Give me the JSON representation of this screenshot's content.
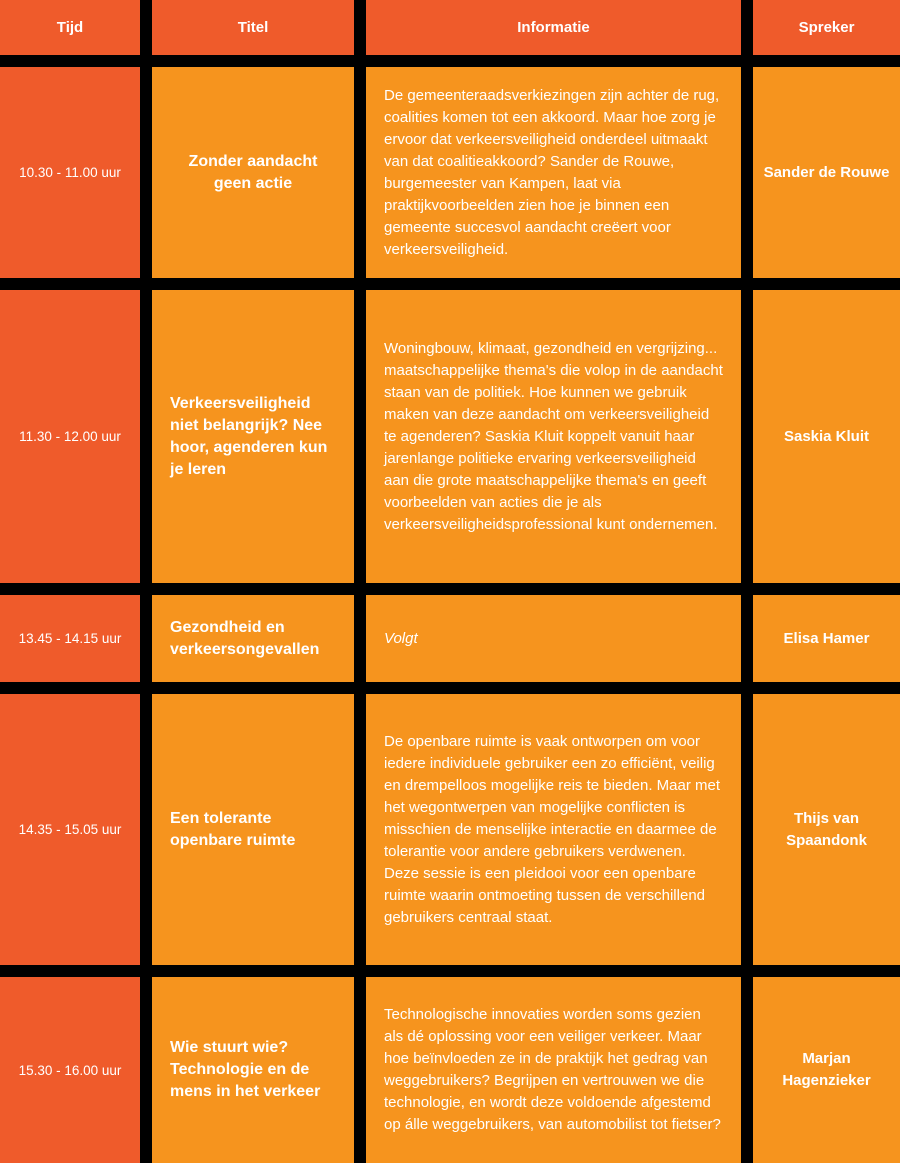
{
  "table": {
    "headers": [
      "Tijd",
      "Titel",
      "Informatie",
      "Spreker"
    ],
    "colors": {
      "header_bg": "#EF5B2B",
      "time_bg": "#EF5B2B",
      "cell_bg": "#F6941E",
      "text": "#FFFFFF",
      "background": "#000000"
    },
    "rows": [
      {
        "time": "10.30 - 11.00 uur",
        "title": "Zonder aandacht geen actie",
        "title_align": "center",
        "info": "De gemeenteraadsverkiezingen zijn achter de rug, coalities komen tot een akkoord. Maar hoe zorg je ervoor dat verkeersveiligheid onderdeel uitmaakt van dat coalitieakkoord? Sander de Rouwe, burgemeester van Kampen, laat via praktijkvoorbeelden zien hoe je binnen een gemeente succesvol aandacht creëert voor verkeersveiligheid.",
        "info_italic": false,
        "speaker": "Sander de Rouwe"
      },
      {
        "time": "11.30 - 12.00 uur",
        "title": "Verkeersveiligheid niet belangrijk? Nee hoor, agenderen kun je leren",
        "title_align": "left",
        "info": "Woningbouw, klimaat, gezondheid en vergrijzing... maatschappelijke thema's die volop in de aandacht staan van de politiek. Hoe kunnen we gebruik maken van deze aandacht om verkeersveiligheid te agenderen? Saskia Kluit koppelt vanuit haar jarenlange politieke ervaring verkeersveiligheid aan die grote maatschappelijke thema's en geeft voorbeelden van acties die je als verkeersveiligheidsprofessional kunt ondernemen.",
        "info_italic": false,
        "speaker": "Saskia Kluit"
      },
      {
        "time": "13.45 - 14.15 uur",
        "title": "Gezondheid en verkeersongevallen",
        "title_align": "left",
        "info": "Volgt",
        "info_italic": true,
        "speaker": "Elisa Hamer"
      },
      {
        "time": "14.35 - 15.05 uur",
        "title": "Een tolerante openbare ruimte",
        "title_align": "left",
        "info": "De openbare ruimte is vaak ontworpen om voor iedere individuele gebruiker een zo efficiënt, veilig en drempelloos mogelijke reis te bieden. Maar met het wegontwerpen van mogelijke conflicten is misschien de menselijke interactie en daarmee de tolerantie voor andere gebruikers verdwenen. Deze sessie is een pleidooi voor een openbare ruimte waarin ontmoeting tussen de verschillend gebruikers centraal staat.",
        "info_italic": false,
        "speaker": "Thijs van Spaandonk"
      },
      {
        "time": "15.30 - 16.00 uur",
        "title": "Wie stuurt wie? Technologie en de mens in het verkeer",
        "title_align": "left",
        "info": "Technologische innovaties worden soms gezien als dé oplossing voor een veiliger verkeer. Maar hoe beïnvloeden ze in de praktijk het gedrag van weggebruikers? Begrijpen en vertrouwen we die technologie, en wordt deze voldoende afgestemd op álle weggebruikers, van automobilist tot fietser?",
        "info_italic": false,
        "speaker": "Marjan Hagenzieker"
      }
    ]
  }
}
